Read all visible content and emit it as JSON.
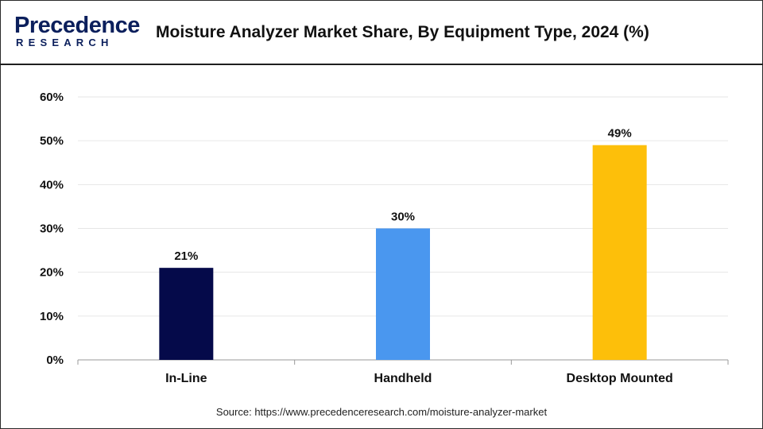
{
  "header": {
    "logo_word": "Precedence",
    "logo_sub": "RESEARCH",
    "title": "Moisture Analyzer Market Share, By Equipment Type, 2024 (%)"
  },
  "chart_data": {
    "type": "bar",
    "title": "Moisture Analyzer Market Share, By Equipment Type, 2024 (%)",
    "xlabel": "",
    "ylabel": "",
    "categories": [
      "In-Line",
      "Handheld",
      "Desktop Mounted"
    ],
    "values": [
      21,
      30,
      49
    ],
    "value_labels": [
      "21%",
      "30%",
      "49%"
    ],
    "colors": [
      "#050a4a",
      "#4a97ef",
      "#fdbf0a"
    ],
    "ylim": [
      0,
      60
    ],
    "yticks": [
      0,
      10,
      20,
      30,
      40,
      50,
      60
    ],
    "ytick_labels": [
      "0%",
      "10%",
      "20%",
      "30%",
      "40%",
      "50%",
      "60%"
    ],
    "grid": true,
    "legend": "none"
  },
  "footer": {
    "source": "Source: https://www.precedenceresearch.com/moisture-analyzer-market"
  }
}
